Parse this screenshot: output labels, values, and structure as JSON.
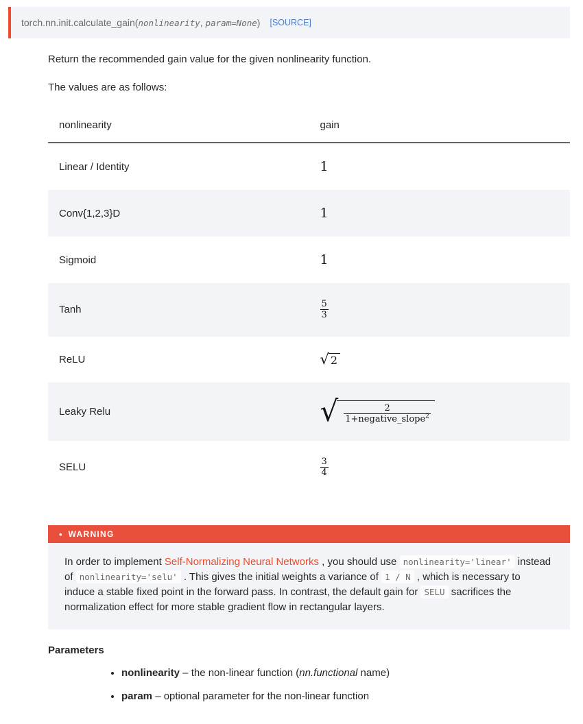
{
  "colors": {
    "accent": "#ee4c2c",
    "warning_bar": "#e94f3b",
    "link_blue": "#4c7bd1",
    "row_alt": "#f3f4f7",
    "code_bg": "#fcfcfd"
  },
  "signature": {
    "prefix_text": "torch.nn.init.calculate_gain(",
    "param1": "nonlinearity",
    "sep": ", ",
    "param2": "param=None",
    "close": ")",
    "source_label": "[SOURCE]"
  },
  "description": "Return the recommended gain value for the given nonlinearity function.",
  "values_intro": "The values are as follows:",
  "table": {
    "headers": [
      "nonlinearity",
      "gain"
    ],
    "rows": [
      {
        "nonlinearity": "Linear / Identity",
        "gain": {
          "type": "plain",
          "value": "1"
        }
      },
      {
        "nonlinearity": "Conv{1,2,3}D",
        "gain": {
          "type": "plain",
          "value": "1"
        }
      },
      {
        "nonlinearity": "Sigmoid",
        "gain": {
          "type": "plain",
          "value": "1"
        }
      },
      {
        "nonlinearity": "Tanh",
        "gain": {
          "type": "frac",
          "num": "5",
          "den": "3"
        }
      },
      {
        "nonlinearity": "ReLU",
        "gain": {
          "type": "sqrt",
          "radicand": "2"
        }
      },
      {
        "nonlinearity": "Leaky Relu",
        "gain": {
          "type": "sqrtfrac",
          "num": "2",
          "den": "1+negative_slope",
          "den_sup": "2"
        }
      },
      {
        "nonlinearity": "SELU",
        "gain": {
          "type": "frac",
          "num": "3",
          "den": "4"
        }
      }
    ]
  },
  "warning": {
    "title": "WARNING",
    "bullet": "•",
    "segments": [
      {
        "t": "text",
        "v": "In order to implement "
      },
      {
        "t": "link",
        "v": "Self-Normalizing Neural Networks"
      },
      {
        "t": "text",
        "v": " , you should use "
      },
      {
        "t": "code",
        "v": "nonlinearity='linear'"
      },
      {
        "t": "text",
        "v": " instead of "
      },
      {
        "t": "code",
        "v": "nonlinearity='selu'"
      },
      {
        "t": "text",
        "v": " . This gives the initial weights a variance of "
      },
      {
        "t": "code",
        "v": "1 / N"
      },
      {
        "t": "text",
        "v": " , which is necessary to induce a stable fixed point in the forward pass. In contrast, the default gain for "
      },
      {
        "t": "code",
        "v": "SELU"
      },
      {
        "t": "text",
        "v": " sacrifices the normalization effect for more stable gradient flow in rectangular layers."
      }
    ]
  },
  "parameters": {
    "heading": "Parameters",
    "items": [
      {
        "segments": [
          {
            "t": "bold",
            "v": "nonlinearity"
          },
          {
            "t": "text",
            "v": " – the non-linear function ("
          },
          {
            "t": "italic",
            "v": "nn.functional"
          },
          {
            "t": "text",
            "v": " name)"
          }
        ]
      },
      {
        "segments": [
          {
            "t": "bold",
            "v": "param"
          },
          {
            "t": "text",
            "v": " – optional parameter for the non-linear function"
          }
        ]
      }
    ]
  }
}
